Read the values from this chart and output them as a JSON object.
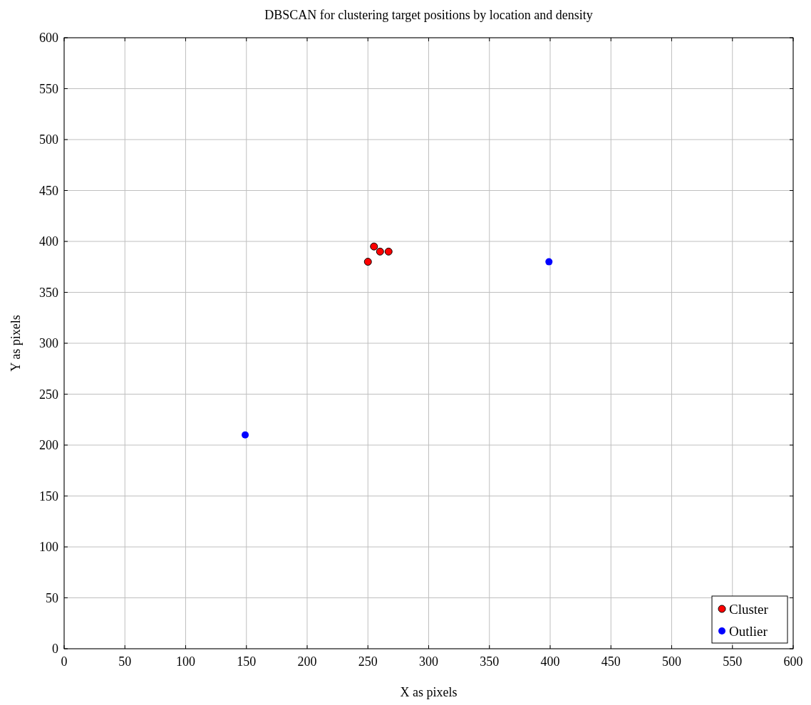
{
  "chart_data": {
    "type": "scatter",
    "title": "DBSCAN for clustering target positions by location and density",
    "xlabel": "X as pixels",
    "ylabel": "Y as pixels",
    "series": [
      {
        "name": "Cluster",
        "color": "#ff0000",
        "x": [
          250,
          255,
          260,
          267
        ],
        "values": [
          380,
          395,
          390,
          390
        ]
      },
      {
        "name": "Outlier",
        "color": "#0000ff",
        "x": [
          149,
          399
        ],
        "values": [
          210,
          380
        ]
      }
    ],
    "xlim": [
      0,
      600
    ],
    "ylim": [
      0,
      600
    ],
    "xticks": [
      0,
      50,
      100,
      150,
      200,
      250,
      300,
      350,
      400,
      450,
      500,
      550,
      600
    ],
    "yticks": [
      0,
      50,
      100,
      150,
      200,
      250,
      300,
      350,
      400,
      450,
      500,
      550,
      600
    ],
    "grid": true,
    "legend": "bottom right",
    "marker": "circle"
  }
}
